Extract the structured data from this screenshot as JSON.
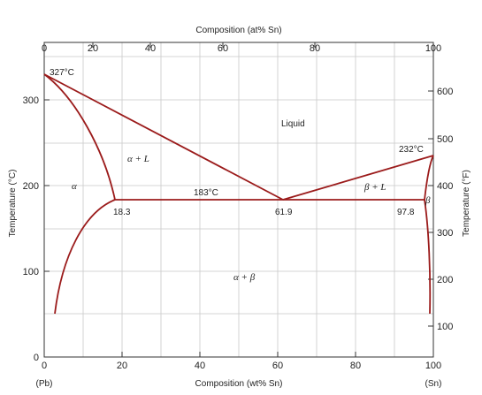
{
  "diagram": {
    "top_axis_title": "Composition (at% Sn)",
    "bottom_axis_title": "Composition (wt% Sn)",
    "left_axis_title": "Temperature (°C)",
    "right_axis_title": "Temperature (°F)",
    "bottom_left_end_label": "(Pb)",
    "bottom_right_end_label": "(Sn)",
    "bottom_ticks": [
      "0",
      "20",
      "40",
      "60",
      "80",
      "100"
    ],
    "top_ticks": [
      "0",
      "20",
      "40",
      "60",
      "80",
      "100"
    ],
    "left_ticks": [
      "0",
      "100",
      "200",
      "300"
    ],
    "right_ticks": [
      "100",
      "200",
      "300",
      "400",
      "500",
      "600"
    ],
    "phase_labels": {
      "liquid": "Liquid",
      "alpha_plus_liquid": "α + L",
      "beta_plus_liquid": "β + L",
      "alpha": "α",
      "beta": "β",
      "alpha_plus_beta": "α + β"
    },
    "point_labels": {
      "pb_melting": "327°C",
      "sn_melting": "232°C",
      "eutectic_temp": "183°C",
      "alpha_limit": "18.3",
      "eutectic_comp": "61.9",
      "beta_limit": "97.8"
    },
    "line_color": "#9b1b1b"
  }
}
